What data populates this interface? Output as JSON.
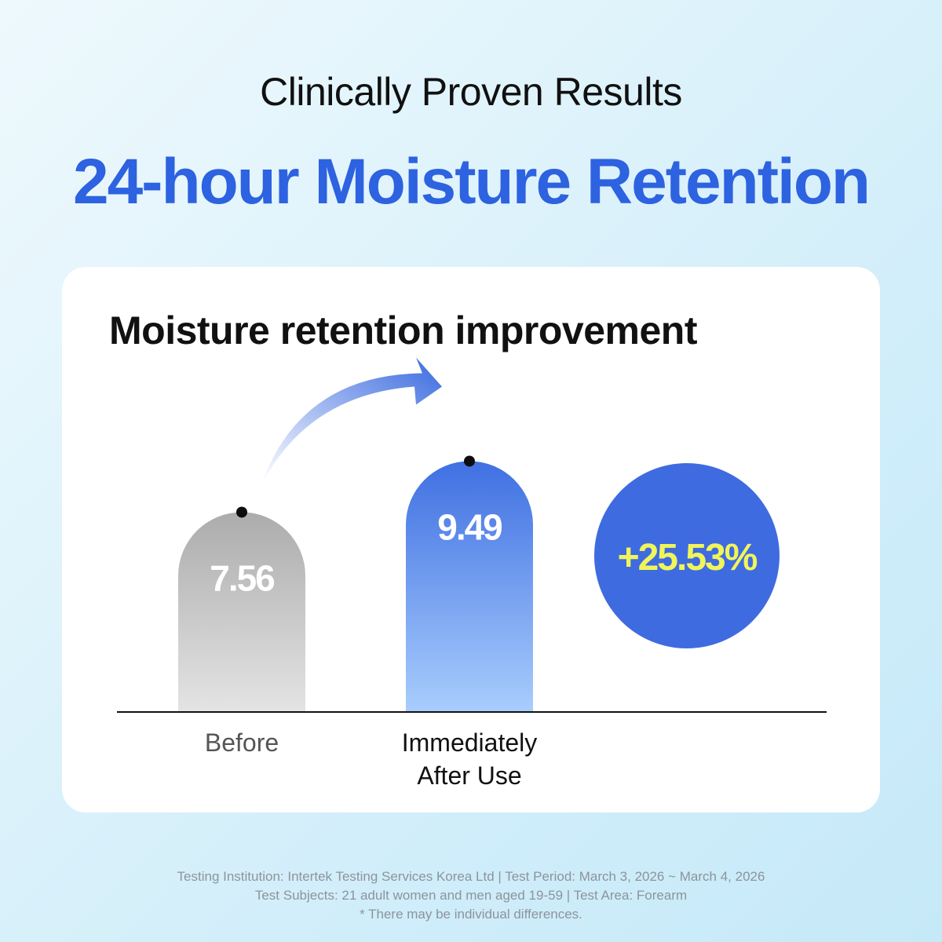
{
  "header": {
    "eyebrow": "Clinically Proven Results",
    "headline": "24-hour Moisture Retention"
  },
  "chart_data": {
    "type": "bar",
    "title": "Moisture retention improvement",
    "categories": [
      "Before",
      "Immediately After Use"
    ],
    "category_lines": [
      [
        "Before"
      ],
      [
        "Immediately",
        "After Use"
      ]
    ],
    "values": [
      7.56,
      9.49
    ],
    "value_labels": [
      "7.56",
      "9.49"
    ],
    "change_label": "+25.53%",
    "xlabel": "",
    "ylabel": "",
    "ylim": [
      0,
      10.9
    ],
    "grid": false,
    "legend": "none"
  },
  "colors": {
    "accent": "#2d62e0",
    "bar_before_top": "#acacac",
    "bar_before_bottom": "#e4e4e4",
    "bar_after_top": "#3f70e2",
    "bar_after_bottom": "#a9cdfd",
    "badge": "#3f6be0",
    "badge_text": "#f1f55a"
  },
  "footnote": {
    "line1": "Testing Institution: Intertek Testing Services Korea Ltd  |  Test Period: March 3, 2026 ~ March 4, 2026",
    "line2": "Test Subjects: 21 adult women and men aged 19-59  |  Test Area: Forearm",
    "line3": "* There may be individual differences."
  }
}
